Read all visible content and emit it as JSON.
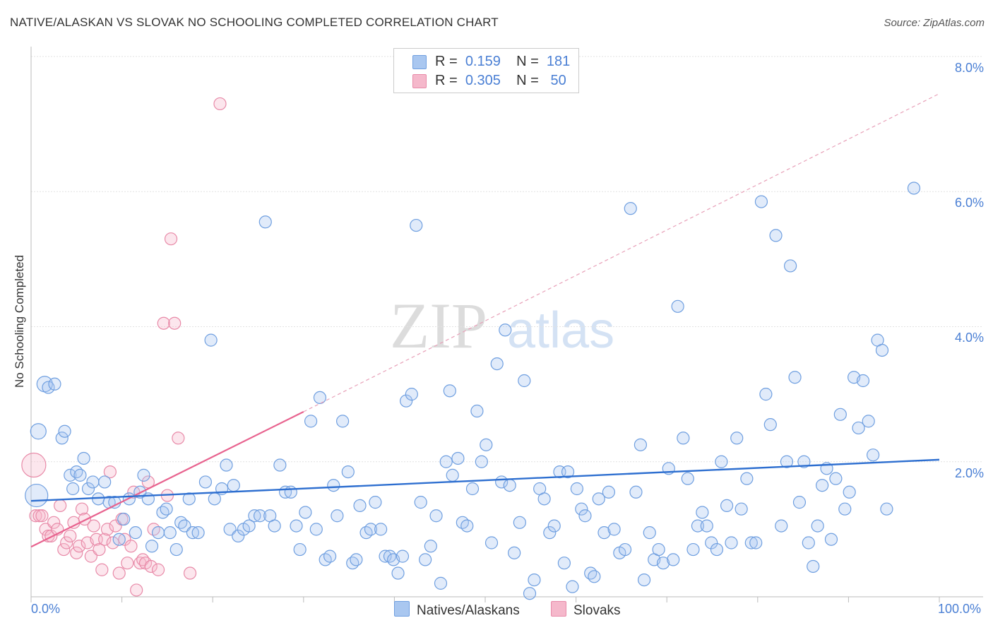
{
  "header": {
    "title": "NATIVE/ALASKAN VS SLOVAK NO SCHOOLING COMPLETED CORRELATION CHART",
    "source": "Source: ZipAtlas.com"
  },
  "watermark": {
    "zip": "ZIP",
    "atlas": "atlas"
  },
  "legend": {
    "rows": [
      {
        "r_label": "R =",
        "r_value": "0.159",
        "n_label": "N =",
        "n_value": "181",
        "color": "#a9c7f0"
      },
      {
        "r_label": "R =",
        "r_value": "0.305",
        "n_label": "N =",
        "n_value": "50",
        "color": "#f5b8cb"
      }
    ]
  },
  "chart_data": {
    "type": "scatter",
    "title": "NATIVE/ALASKAN VS SLOVAK NO SCHOOLING COMPLETED CORRELATION CHART",
    "ylabel": "No Schooling Completed",
    "xlim": [
      0,
      100
    ],
    "ylim": [
      0,
      8
    ],
    "x_tick_labels": [
      "0.0%",
      "100.0%"
    ],
    "y_tick_labels": [
      "2.0%",
      "4.0%",
      "6.0%",
      "8.0%"
    ],
    "y_ticks": [
      2,
      4,
      6,
      8
    ],
    "grid": true,
    "legend_position": "top-center",
    "colors": {
      "natives": "#4a7fd4",
      "natives_fill": "#a9c7f0",
      "slovaks": "#e8638f",
      "slovaks_fill": "#f5b8cb"
    },
    "series": [
      {
        "name": "Natives/Alaskans",
        "trend": {
          "x": [
            0,
            100
          ],
          "y": [
            1.42,
            2.03
          ]
        },
        "points": [
          [
            0.6,
            1.5
          ],
          [
            0.8,
            2.45
          ],
          [
            1.5,
            3.15
          ],
          [
            1.9,
            3.1
          ],
          [
            2.6,
            3.15
          ],
          [
            3.4,
            2.35
          ],
          [
            3.7,
            2.45
          ],
          [
            4.3,
            1.8
          ],
          [
            4.6,
            1.6
          ],
          [
            5.0,
            1.85
          ],
          [
            5.4,
            1.8
          ],
          [
            5.8,
            2.05
          ],
          [
            6.3,
            1.6
          ],
          [
            6.8,
            1.7
          ],
          [
            7.4,
            1.45
          ],
          [
            8.1,
            1.7
          ],
          [
            8.6,
            1.4
          ],
          [
            9.2,
            1.4
          ],
          [
            9.7,
            0.85
          ],
          [
            10.2,
            1.15
          ],
          [
            10.8,
            1.45
          ],
          [
            11.5,
            0.95
          ],
          [
            12.0,
            1.55
          ],
          [
            12.4,
            1.8
          ],
          [
            12.9,
            1.45
          ],
          [
            13.3,
            0.75
          ],
          [
            14.0,
            0.95
          ],
          [
            14.5,
            1.25
          ],
          [
            14.9,
            1.3
          ],
          [
            15.3,
            0.95
          ],
          [
            16.0,
            0.7
          ],
          [
            16.5,
            1.1
          ],
          [
            16.9,
            1.05
          ],
          [
            17.4,
            1.45
          ],
          [
            17.8,
            0.95
          ],
          [
            18.4,
            0.95
          ],
          [
            19.2,
            1.7
          ],
          [
            19.8,
            3.8
          ],
          [
            20.2,
            1.45
          ],
          [
            21.0,
            1.6
          ],
          [
            21.5,
            1.95
          ],
          [
            21.9,
            1.0
          ],
          [
            22.3,
            1.65
          ],
          [
            22.8,
            0.9
          ],
          [
            23.4,
            1.0
          ],
          [
            24.0,
            1.05
          ],
          [
            24.6,
            1.2
          ],
          [
            25.2,
            1.2
          ],
          [
            25.8,
            5.55
          ],
          [
            26.3,
            1.2
          ],
          [
            26.8,
            1.05
          ],
          [
            27.4,
            1.95
          ],
          [
            28.0,
            1.55
          ],
          [
            28.6,
            1.55
          ],
          [
            29.2,
            1.05
          ],
          [
            29.6,
            0.7
          ],
          [
            30.2,
            1.25
          ],
          [
            30.8,
            2.6
          ],
          [
            31.4,
            1.0
          ],
          [
            31.8,
            2.95
          ],
          [
            32.4,
            0.55
          ],
          [
            32.9,
            0.6
          ],
          [
            33.3,
            1.65
          ],
          [
            33.7,
            1.2
          ],
          [
            34.3,
            2.6
          ],
          [
            34.9,
            1.85
          ],
          [
            35.4,
            0.5
          ],
          [
            35.8,
            0.55
          ],
          [
            36.2,
            1.35
          ],
          [
            36.9,
            0.95
          ],
          [
            37.4,
            1.0
          ],
          [
            37.9,
            1.4
          ],
          [
            38.5,
            1.0
          ],
          [
            39.0,
            0.6
          ],
          [
            39.5,
            0.6
          ],
          [
            39.9,
            0.55
          ],
          [
            40.4,
            0.35
          ],
          [
            40.9,
            0.6
          ],
          [
            41.3,
            2.9
          ],
          [
            41.9,
            3.0
          ],
          [
            42.4,
            5.5
          ],
          [
            42.9,
            1.4
          ],
          [
            43.4,
            0.55
          ],
          [
            44.0,
            0.75
          ],
          [
            44.6,
            1.2
          ],
          [
            45.1,
            0.2
          ],
          [
            45.7,
            2.0
          ],
          [
            46.1,
            3.05
          ],
          [
            46.4,
            1.8
          ],
          [
            47.0,
            2.05
          ],
          [
            47.5,
            1.1
          ],
          [
            48.0,
            1.05
          ],
          [
            48.6,
            1.6
          ],
          [
            49.1,
            2.75
          ],
          [
            49.6,
            2.0
          ],
          [
            50.1,
            2.25
          ],
          [
            50.7,
            0.8
          ],
          [
            51.3,
            3.45
          ],
          [
            51.8,
            1.7
          ],
          [
            52.2,
            3.95
          ],
          [
            52.7,
            1.65
          ],
          [
            53.2,
            0.65
          ],
          [
            53.8,
            1.1
          ],
          [
            54.3,
            3.2
          ],
          [
            54.9,
            0.05
          ],
          [
            55.4,
            0.25
          ],
          [
            56.0,
            1.6
          ],
          [
            56.5,
            1.45
          ],
          [
            57.1,
            0.95
          ],
          [
            57.6,
            1.05
          ],
          [
            58.2,
            1.85
          ],
          [
            58.7,
            0.5
          ],
          [
            59.1,
            1.85
          ],
          [
            59.6,
            0.15
          ],
          [
            60.1,
            1.6
          ],
          [
            60.6,
            1.3
          ],
          [
            61.0,
            1.2
          ],
          [
            61.6,
            0.35
          ],
          [
            62.0,
            0.3
          ],
          [
            62.5,
            1.45
          ],
          [
            63.1,
            0.95
          ],
          [
            63.6,
            1.55
          ],
          [
            64.2,
            1.0
          ],
          [
            64.8,
            0.65
          ],
          [
            65.4,
            0.7
          ],
          [
            66.0,
            5.75
          ],
          [
            66.6,
            1.55
          ],
          [
            67.1,
            2.25
          ],
          [
            67.5,
            0.25
          ],
          [
            68.1,
            0.95
          ],
          [
            68.6,
            0.55
          ],
          [
            69.1,
            0.7
          ],
          [
            69.6,
            0.5
          ],
          [
            70.2,
            1.9
          ],
          [
            70.7,
            0.55
          ],
          [
            71.2,
            4.3
          ],
          [
            71.8,
            2.35
          ],
          [
            72.3,
            1.75
          ],
          [
            72.9,
            0.7
          ],
          [
            73.4,
            1.05
          ],
          [
            73.9,
            1.25
          ],
          [
            74.4,
            1.05
          ],
          [
            74.9,
            0.8
          ],
          [
            75.5,
            0.7
          ],
          [
            76.0,
            2.0
          ],
          [
            76.6,
            1.35
          ],
          [
            77.1,
            0.8
          ],
          [
            77.7,
            2.35
          ],
          [
            78.2,
            1.3
          ],
          [
            78.8,
            1.75
          ],
          [
            79.3,
            0.8
          ],
          [
            79.8,
            0.8
          ],
          [
            80.4,
            5.85
          ],
          [
            80.9,
            3.0
          ],
          [
            81.4,
            2.55
          ],
          [
            82.0,
            5.35
          ],
          [
            82.6,
            1.05
          ],
          [
            83.2,
            2.0
          ],
          [
            83.6,
            4.9
          ],
          [
            84.1,
            3.25
          ],
          [
            84.6,
            1.4
          ],
          [
            85.1,
            2.0
          ],
          [
            85.6,
            0.8
          ],
          [
            86.1,
            0.45
          ],
          [
            86.6,
            1.05
          ],
          [
            87.1,
            1.65
          ],
          [
            87.6,
            1.9
          ],
          [
            88.1,
            0.85
          ],
          [
            88.6,
            1.75
          ],
          [
            89.1,
            2.7
          ],
          [
            89.6,
            1.3
          ],
          [
            90.1,
            1.55
          ],
          [
            90.6,
            3.25
          ],
          [
            91.1,
            2.5
          ],
          [
            91.6,
            3.2
          ],
          [
            92.2,
            2.6
          ],
          [
            92.7,
            2.1
          ],
          [
            93.2,
            3.8
          ],
          [
            93.7,
            3.65
          ],
          [
            94.2,
            1.3
          ],
          [
            97.2,
            6.05
          ]
        ]
      },
      {
        "name": "Slovaks",
        "trend": {
          "x": [
            0,
            30
          ],
          "y": [
            0.74,
            2.74
          ]
        },
        "trend_ext": {
          "x": [
            30,
            100
          ],
          "y": [
            2.74,
            7.45
          ]
        },
        "points": [
          [
            0.3,
            1.95
          ],
          [
            0.5,
            1.2
          ],
          [
            0.9,
            1.2
          ],
          [
            1.2,
            1.2
          ],
          [
            1.6,
            1.0
          ],
          [
            1.9,
            0.9
          ],
          [
            2.2,
            0.9
          ],
          [
            2.5,
            1.1
          ],
          [
            2.9,
            1.0
          ],
          [
            3.2,
            1.35
          ],
          [
            3.6,
            0.7
          ],
          [
            3.9,
            0.8
          ],
          [
            4.3,
            0.9
          ],
          [
            4.7,
            1.1
          ],
          [
            5.0,
            0.65
          ],
          [
            5.3,
            0.75
          ],
          [
            5.6,
            1.3
          ],
          [
            5.9,
            1.15
          ],
          [
            6.2,
            0.8
          ],
          [
            6.6,
            0.6
          ],
          [
            6.9,
            1.05
          ],
          [
            7.2,
            0.85
          ],
          [
            7.5,
            0.7
          ],
          [
            7.8,
            0.4
          ],
          [
            8.1,
            0.85
          ],
          [
            8.4,
            1.0
          ],
          [
            8.7,
            1.85
          ],
          [
            9.0,
            0.8
          ],
          [
            9.3,
            1.05
          ],
          [
            9.7,
            0.35
          ],
          [
            10.0,
            1.15
          ],
          [
            10.3,
            0.85
          ],
          [
            10.6,
            0.5
          ],
          [
            11.0,
            0.75
          ],
          [
            11.3,
            1.55
          ],
          [
            11.6,
            0.1
          ],
          [
            12.0,
            0.5
          ],
          [
            12.3,
            0.55
          ],
          [
            12.6,
            0.5
          ],
          [
            12.9,
            1.7
          ],
          [
            13.2,
            0.45
          ],
          [
            13.5,
            1.0
          ],
          [
            14.0,
            0.4
          ],
          [
            14.6,
            4.05
          ],
          [
            15.0,
            1.5
          ],
          [
            15.4,
            5.3
          ],
          [
            15.8,
            4.05
          ],
          [
            16.2,
            2.35
          ],
          [
            17.5,
            0.35
          ],
          [
            20.8,
            7.3
          ]
        ]
      }
    ]
  },
  "bottom_legend": {
    "natives_label": "Natives/Alaskans",
    "slovaks_label": "Slovaks"
  }
}
